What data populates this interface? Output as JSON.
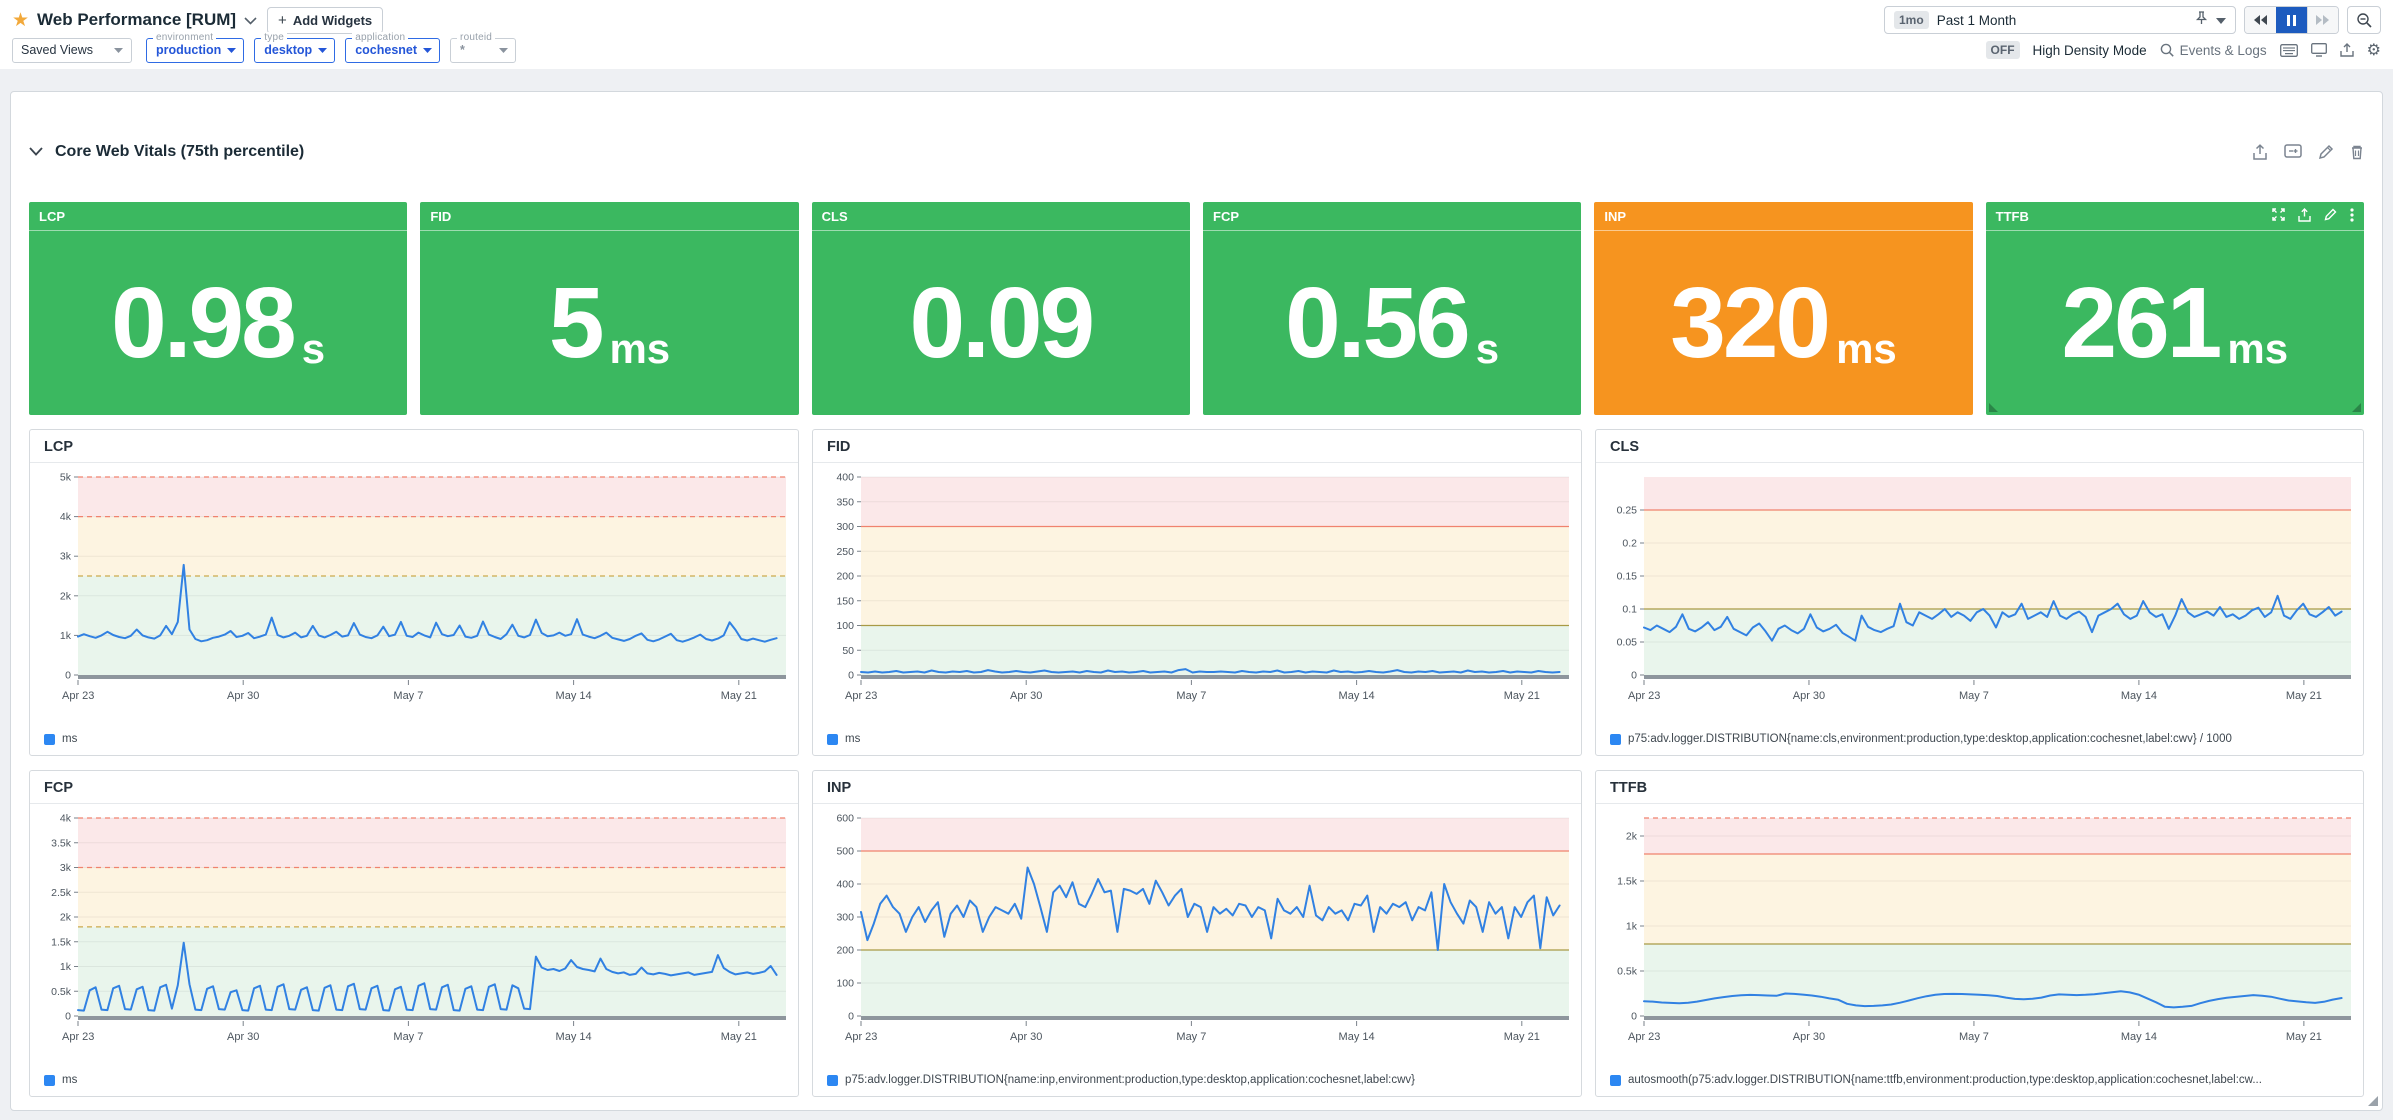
{
  "header": {
    "title": "Web Performance [RUM]",
    "add_widgets_label": "Add Widgets",
    "time_range": {
      "badge": "1mo",
      "label": "Past 1 Month"
    },
    "density": {
      "badge": "OFF",
      "label": "High Density Mode"
    },
    "events_logs_label": "Events & Logs"
  },
  "filters": {
    "saved_views_label": "Saved Views",
    "pills": [
      {
        "label": "environment",
        "value": "production",
        "active": true
      },
      {
        "label": "type",
        "value": "desktop",
        "active": true
      },
      {
        "label": "application",
        "value": "cochesnet",
        "active": true
      },
      {
        "label": "routeid",
        "value": "*",
        "active": false
      }
    ]
  },
  "section": {
    "title": "Core Web Vitals (75th percentile)"
  },
  "tiles": [
    {
      "name": "LCP",
      "value": "0.98",
      "unit": "s",
      "color": "green",
      "hovered": false
    },
    {
      "name": "FID",
      "value": "5",
      "unit": "ms",
      "color": "green",
      "hovered": false
    },
    {
      "name": "CLS",
      "value": "0.09",
      "unit": "",
      "color": "green",
      "hovered": false
    },
    {
      "name": "FCP",
      "value": "0.56",
      "unit": "s",
      "color": "green",
      "hovered": false
    },
    {
      "name": "INP",
      "value": "320",
      "unit": "ms",
      "color": "orange",
      "hovered": false
    },
    {
      "name": "TTFB",
      "value": "261",
      "unit": "ms",
      "color": "green",
      "hovered": true
    }
  ],
  "colors": {
    "green": "#3bb860",
    "orange": "#f6941f",
    "line": "#3181e2",
    "legend_swatch": "#2c87f2",
    "band": {
      "green": "#e9f5ec",
      "yellow": "#fdf4e1",
      "red": "#fbe8e9"
    },
    "thr": {
      "salmon": "#f0826e",
      "olive": "#a89a45",
      "tan": "#cbaa4e"
    },
    "axis_strip": "#8e969d",
    "tick_text": "#4c555e"
  },
  "chart_data": [
    {
      "type": "line",
      "title": "LCP",
      "legend": "ms",
      "ylabel": "ms",
      "ylim": [
        0,
        5000
      ],
      "x_range": [
        0,
        30
      ],
      "grid": true,
      "legend_position": "bottom",
      "yticks": [
        [
          0,
          "0"
        ],
        [
          1000,
          "1k"
        ],
        [
          2000,
          "2k"
        ],
        [
          3000,
          "3k"
        ],
        [
          4000,
          "4k"
        ],
        [
          5000,
          "5k"
        ]
      ],
      "x_ticks": [
        [
          0,
          "Apr 23"
        ],
        [
          7,
          "Apr 30"
        ],
        [
          14,
          "May 7"
        ],
        [
          21,
          "May 14"
        ],
        [
          28,
          "May 21"
        ]
      ],
      "bands": [
        {
          "from": 0,
          "to": 2500,
          "color": "green"
        },
        {
          "from": 2500,
          "to": 4000,
          "color": "yellow"
        },
        {
          "from": 4000,
          "to": 5000,
          "color": "red"
        }
      ],
      "thresholds": [
        {
          "v": 2500,
          "color": "tan",
          "dash": true
        },
        {
          "v": 4000,
          "color": "salmon",
          "dash": true
        },
        {
          "v": 5000,
          "color": "salmon",
          "dash": true
        }
      ],
      "values": [
        970,
        1030,
        980,
        940,
        1000,
        1090,
        1010,
        960,
        930,
        990,
        1150,
        1000,
        950,
        920,
        1000,
        1240,
        1030,
        1340,
        2780,
        1150,
        910,
        850,
        880,
        940,
        970,
        1020,
        1110,
        960,
        990,
        1060,
        930,
        970,
        1020,
        1450,
        1010,
        950,
        990,
        1070,
        950,
        990,
        1240,
        1000,
        950,
        1010,
        1090,
        970,
        1000,
        1310,
        1020,
        960,
        930,
        1000,
        1220,
        980,
        1020,
        1340,
        990,
        960,
        1070,
        1000,
        950,
        1320,
        1030,
        980,
        1010,
        1250,
        970,
        940,
        990,
        1350,
        1020,
        960,
        910,
        1030,
        1270,
        990,
        950,
        1010,
        1400,
        1060,
        980,
        1000,
        1070,
        990,
        1030,
        1410,
        1020,
        970,
        930,
        990,
        1070,
        940,
        900,
        860,
        910,
        990,
        1050,
        890,
        850,
        900,
        970,
        1040,
        880,
        840,
        890,
        950,
        1020,
        910,
        870,
        920,
        1000,
        1330,
        1140,
        910,
        870,
        920,
        880,
        840,
        890,
        930
      ]
    },
    {
      "type": "line",
      "title": "FID",
      "legend": "ms",
      "ylabel": "ms",
      "ylim": [
        0,
        400
      ],
      "x_range": [
        0,
        30
      ],
      "grid": true,
      "legend_position": "bottom",
      "yticks": [
        [
          0,
          "0"
        ],
        [
          50,
          "50"
        ],
        [
          100,
          "100"
        ],
        [
          150,
          "150"
        ],
        [
          200,
          "200"
        ],
        [
          250,
          "250"
        ],
        [
          300,
          "300"
        ],
        [
          350,
          "350"
        ],
        [
          400,
          "400"
        ]
      ],
      "x_ticks": [
        [
          0,
          "Apr 23"
        ],
        [
          7,
          "Apr 30"
        ],
        [
          14,
          "May 7"
        ],
        [
          21,
          "May 14"
        ],
        [
          28,
          "May 21"
        ]
      ],
      "bands": [
        {
          "from": 0,
          "to": 100,
          "color": "green"
        },
        {
          "from": 100,
          "to": 300,
          "color": "yellow"
        },
        {
          "from": 300,
          "to": 400,
          "color": "red"
        }
      ],
      "thresholds": [
        {
          "v": 100,
          "color": "olive",
          "dash": false
        },
        {
          "v": 300,
          "color": "salmon",
          "dash": false
        }
      ],
      "values": [
        6,
        5,
        7,
        5,
        6,
        8,
        5,
        6,
        7,
        5,
        9,
        6,
        5,
        7,
        6,
        8,
        5,
        6,
        10,
        7,
        5,
        6,
        8,
        6,
        5,
        7,
        9,
        6,
        5,
        6,
        7,
        5,
        8,
        6,
        5,
        9,
        6,
        7,
        5,
        6,
        8,
        5,
        6,
        7,
        5,
        10,
        12,
        5,
        7,
        6,
        6,
        7,
        6,
        5,
        8,
        6,
        5,
        7,
        6,
        9,
        5,
        6,
        8,
        5,
        7,
        6,
        5,
        9,
        6,
        7,
        5,
        6,
        8,
        6,
        5,
        7,
        10,
        6,
        5,
        7,
        6,
        8,
        5,
        6,
        7,
        5,
        9,
        6,
        7,
        5,
        6,
        8,
        5,
        7,
        6,
        5,
        8,
        6,
        5,
        6
      ]
    },
    {
      "type": "line",
      "title": "CLS",
      "legend": "p75:adv.logger.DISTRIBUTION{name:cls,environment:production,type:desktop,application:cochesnet,label:cwv} / 1000",
      "ylabel": "",
      "ylim": [
        0,
        0.3
      ],
      "x_range": [
        0,
        30
      ],
      "grid": true,
      "legend_position": "bottom",
      "yticks": [
        [
          0,
          "0"
        ],
        [
          0.05,
          "0.05"
        ],
        [
          0.1,
          "0.1"
        ],
        [
          0.15,
          "0.15"
        ],
        [
          0.2,
          "0.2"
        ],
        [
          0.25,
          "0.25"
        ]
      ],
      "x_ticks": [
        [
          0,
          "Apr 23"
        ],
        [
          7,
          "Apr 30"
        ],
        [
          14,
          "May 7"
        ],
        [
          21,
          "May 14"
        ],
        [
          28,
          "May 21"
        ]
      ],
      "bands": [
        {
          "from": 0,
          "to": 0.1,
          "color": "green"
        },
        {
          "from": 0.1,
          "to": 0.25,
          "color": "yellow"
        },
        {
          "from": 0.25,
          "to": 0.3,
          "color": "red"
        }
      ],
      "thresholds": [
        {
          "v": 0.1,
          "color": "olive",
          "dash": false
        },
        {
          "v": 0.25,
          "color": "salmon",
          "dash": false
        }
      ],
      "values": [
        0.072,
        0.068,
        0.075,
        0.07,
        0.065,
        0.073,
        0.092,
        0.07,
        0.066,
        0.072,
        0.08,
        0.068,
        0.073,
        0.088,
        0.07,
        0.065,
        0.06,
        0.072,
        0.078,
        0.066,
        0.052,
        0.07,
        0.075,
        0.068,
        0.063,
        0.07,
        0.092,
        0.072,
        0.066,
        0.07,
        0.076,
        0.064,
        0.058,
        0.052,
        0.09,
        0.073,
        0.068,
        0.065,
        0.07,
        0.074,
        0.108,
        0.08,
        0.075,
        0.095,
        0.09,
        0.085,
        0.092,
        0.1,
        0.088,
        0.095,
        0.09,
        0.082,
        0.095,
        0.1,
        0.09,
        0.072,
        0.095,
        0.088,
        0.092,
        0.108,
        0.085,
        0.09,
        0.095,
        0.088,
        0.112,
        0.09,
        0.085,
        0.092,
        0.096,
        0.088,
        0.065,
        0.09,
        0.095,
        0.1,
        0.108,
        0.092,
        0.085,
        0.09,
        0.112,
        0.095,
        0.088,
        0.092,
        0.07,
        0.09,
        0.115,
        0.095,
        0.088,
        0.092,
        0.096,
        0.09,
        0.103,
        0.088,
        0.092,
        0.085,
        0.09,
        0.098,
        0.102,
        0.088,
        0.095,
        0.12,
        0.09,
        0.085,
        0.098,
        0.108,
        0.092,
        0.088,
        0.095,
        0.103,
        0.09,
        0.096
      ]
    },
    {
      "type": "line",
      "title": "FCP",
      "legend": "ms",
      "ylabel": "ms",
      "ylim": [
        0,
        4000
      ],
      "x_range": [
        0,
        30
      ],
      "grid": true,
      "legend_position": "bottom",
      "yticks": [
        [
          0,
          "0"
        ],
        [
          500,
          "0.5k"
        ],
        [
          1000,
          "1k"
        ],
        [
          1500,
          "1.5k"
        ],
        [
          2000,
          "2k"
        ],
        [
          2500,
          "2.5k"
        ],
        [
          3000,
          "3k"
        ],
        [
          3500,
          "3.5k"
        ],
        [
          4000,
          "4k"
        ]
      ],
      "x_ticks": [
        [
          0,
          "Apr 23"
        ],
        [
          7,
          "Apr 30"
        ],
        [
          14,
          "May 7"
        ],
        [
          21,
          "May 14"
        ],
        [
          28,
          "May 21"
        ]
      ],
      "bands": [
        {
          "from": 0,
          "to": 1800,
          "color": "green"
        },
        {
          "from": 1800,
          "to": 3000,
          "color": "yellow"
        },
        {
          "from": 3000,
          "to": 4000,
          "color": "red"
        }
      ],
      "thresholds": [
        {
          "v": 1800,
          "color": "tan",
          "dash": true
        },
        {
          "v": 3000,
          "color": "salmon",
          "dash": true
        },
        {
          "v": 4000,
          "color": "salmon",
          "dash": true
        }
      ],
      "values": [
        120,
        110,
        520,
        580,
        130,
        120,
        560,
        610,
        140,
        130,
        540,
        590,
        120,
        110,
        580,
        630,
        150,
        620,
        1480,
        640,
        130,
        120,
        550,
        600,
        140,
        130,
        480,
        520,
        120,
        110,
        560,
        610,
        130,
        120,
        590,
        640,
        140,
        130,
        530,
        580,
        120,
        110,
        570,
        620,
        130,
        120,
        600,
        650,
        140,
        130,
        560,
        610,
        120,
        110,
        540,
        590,
        130,
        120,
        610,
        660,
        140,
        130,
        580,
        630,
        120,
        110,
        550,
        600,
        130,
        120,
        590,
        640,
        140,
        130,
        620,
        560,
        150,
        140,
        1200,
        980,
        930,
        950,
        910,
        960,
        1130,
        990,
        950,
        930,
        900,
        1160,
        950,
        890,
        860,
        880,
        830,
        850,
        980,
        860,
        840,
        870,
        850,
        820,
        840,
        860,
        880,
        830,
        850,
        870,
        890,
        1230,
        970,
        890,
        840,
        860,
        880,
        850,
        870,
        900,
        1010,
        830
      ]
    },
    {
      "type": "line",
      "title": "INP",
      "legend": "p75:adv.logger.DISTRIBUTION{name:inp,environment:production,type:desktop,application:cochesnet,label:cwv}",
      "ylabel": "",
      "ylim": [
        0,
        600
      ],
      "x_range": [
        0,
        30
      ],
      "grid": true,
      "legend_position": "bottom",
      "yticks": [
        [
          0,
          "0"
        ],
        [
          100,
          "100"
        ],
        [
          200,
          "200"
        ],
        [
          300,
          "300"
        ],
        [
          400,
          "400"
        ],
        [
          500,
          "500"
        ],
        [
          600,
          "600"
        ]
      ],
      "x_ticks": [
        [
          0,
          "Apr 23"
        ],
        [
          7,
          "Apr 30"
        ],
        [
          14,
          "May 7"
        ],
        [
          21,
          "May 14"
        ],
        [
          28,
          "May 21"
        ]
      ],
      "bands": [
        {
          "from": 0,
          "to": 200,
          "color": "green"
        },
        {
          "from": 200,
          "to": 500,
          "color": "yellow"
        },
        {
          "from": 500,
          "to": 600,
          "color": "red"
        }
      ],
      "thresholds": [
        {
          "v": 200,
          "color": "olive",
          "dash": false
        },
        {
          "v": 500,
          "color": "salmon",
          "dash": false
        }
      ],
      "values": [
        315,
        230,
        280,
        340,
        365,
        330,
        310,
        255,
        300,
        330,
        285,
        320,
        345,
        240,
        310,
        335,
        300,
        350,
        330,
        255,
        300,
        330,
        320,
        310,
        340,
        295,
        450,
        400,
        330,
        255,
        375,
        395,
        360,
        405,
        340,
        330,
        370,
        415,
        375,
        380,
        255,
        385,
        380,
        370,
        385,
        340,
        410,
        375,
        335,
        365,
        385,
        300,
        340,
        330,
        255,
        330,
        310,
        325,
        305,
        340,
        335,
        300,
        330,
        320,
        235,
        355,
        320,
        310,
        330,
        300,
        395,
        305,
        290,
        330,
        310,
        320,
        290,
        340,
        335,
        365,
        255,
        330,
        310,
        340,
        330,
        345,
        290,
        330,
        320,
        375,
        200,
        400,
        345,
        310,
        280,
        350,
        330,
        255,
        345,
        310,
        330,
        235,
        330,
        300,
        345,
        365,
        205,
        360,
        305,
        335
      ]
    },
    {
      "type": "line",
      "title": "TTFB",
      "legend": "autosmooth(p75:adv.logger.DISTRIBUTION{name:ttfb,environment:production,type:desktop,application:cochesnet,label:cw...",
      "ylabel": "",
      "ylim": [
        0,
        2200
      ],
      "x_range": [
        0,
        30
      ],
      "grid": true,
      "legend_position": "bottom",
      "yticks": [
        [
          0,
          "0"
        ],
        [
          500,
          "0.5k"
        ],
        [
          1000,
          "1k"
        ],
        [
          1500,
          "1.5k"
        ],
        [
          2000,
          "2k"
        ]
      ],
      "x_ticks": [
        [
          0,
          "Apr 23"
        ],
        [
          7,
          "Apr 30"
        ],
        [
          14,
          "May 7"
        ],
        [
          21,
          "May 14"
        ],
        [
          28,
          "May 21"
        ]
      ],
      "bands": [
        {
          "from": 0,
          "to": 800,
          "color": "green"
        },
        {
          "from": 800,
          "to": 1800,
          "color": "yellow"
        },
        {
          "from": 1800,
          "to": 2200,
          "color": "red"
        }
      ],
      "thresholds": [
        {
          "v": 800,
          "color": "olive",
          "dash": false
        },
        {
          "v": 1800,
          "color": "salmon",
          "dash": false
        },
        {
          "v": 2200,
          "color": "salmon",
          "dash": true
        }
      ],
      "values": [
        165,
        160,
        150,
        145,
        142,
        148,
        160,
        178,
        195,
        210,
        222,
        230,
        234,
        232,
        228,
        225,
        250,
        246,
        238,
        228,
        215,
        196,
        180,
        135,
        118,
        110,
        112,
        118,
        128,
        148,
        172,
        198,
        220,
        236,
        244,
        246,
        244,
        240,
        236,
        230,
        222,
        205,
        190,
        186,
        192,
        205,
        228,
        240,
        236,
        232,
        236,
        242,
        252,
        264,
        274,
        262,
        238,
        195,
        152,
        102,
        96,
        102,
        112,
        142,
        168,
        188,
        202,
        212,
        222,
        232,
        226,
        214,
        192,
        172,
        162,
        152,
        145,
        158,
        182,
        200
      ]
    }
  ]
}
